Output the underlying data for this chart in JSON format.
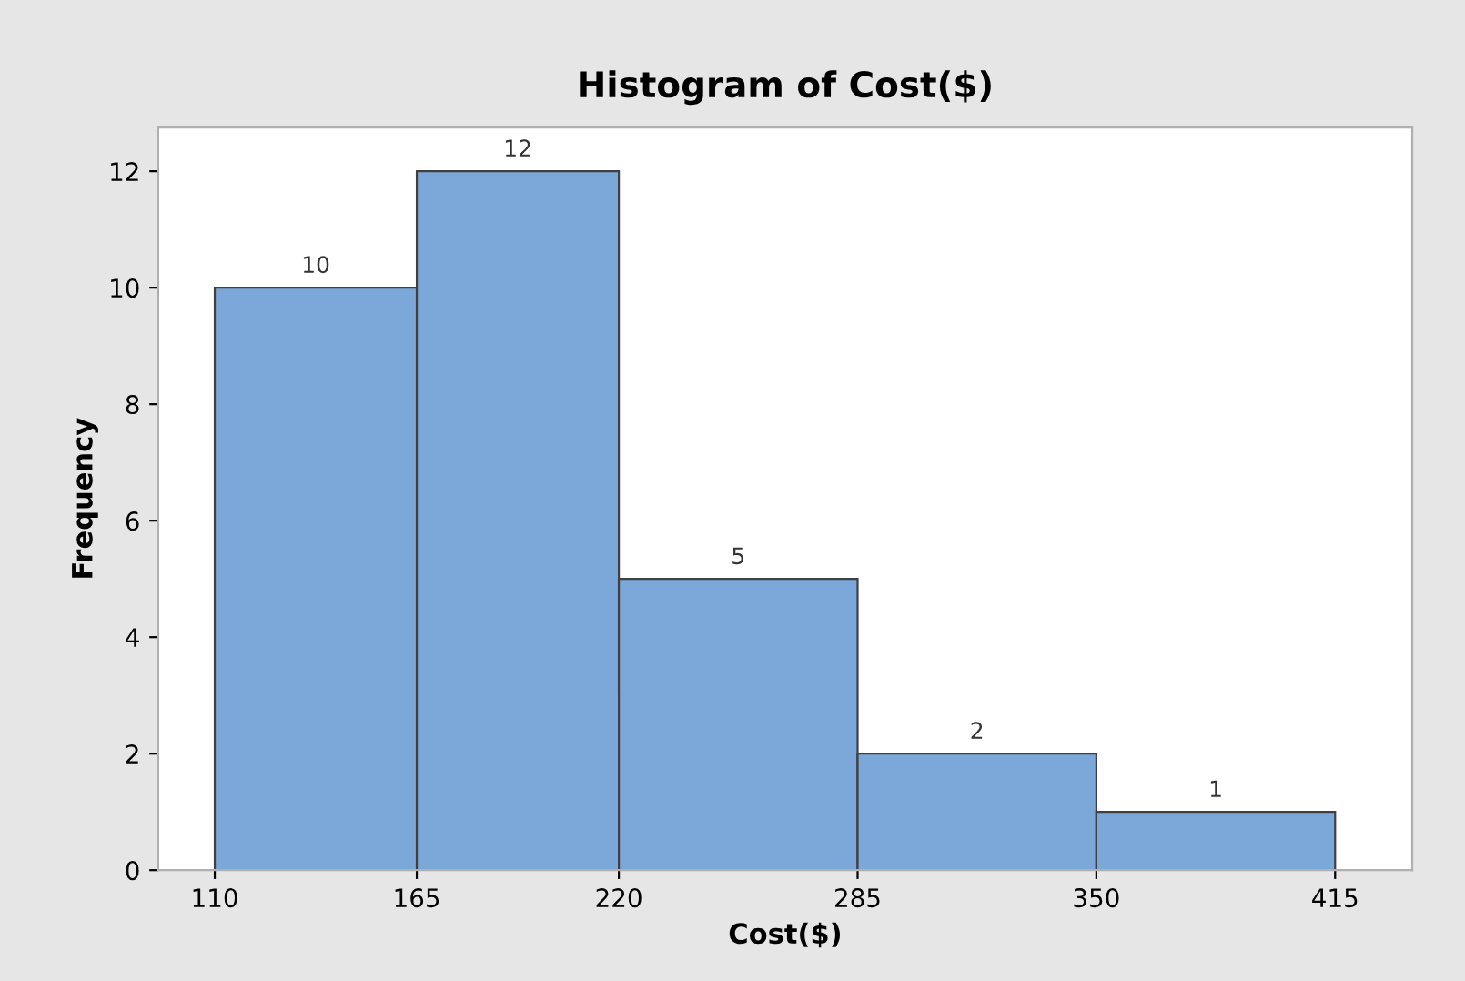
{
  "chart_data": {
    "type": "histogram",
    "title": "Histogram of Cost($)",
    "xlabel": "Cost($)",
    "ylabel": "Frequency",
    "bins": [
      110,
      165,
      220,
      285,
      350,
      415
    ],
    "values": [
      10,
      12,
      5,
      2,
      1
    ],
    "color": "#7ba7d9",
    "data_labels": true,
    "xlim": [
      94.6,
      436
    ],
    "xticks": [
      110,
      165,
      220,
      285,
      350,
      415
    ],
    "ylim": [
      0,
      12.75
    ],
    "yticks": [
      0,
      2,
      4,
      6,
      8,
      10,
      12
    ],
    "grid": false,
    "legend": false
  }
}
